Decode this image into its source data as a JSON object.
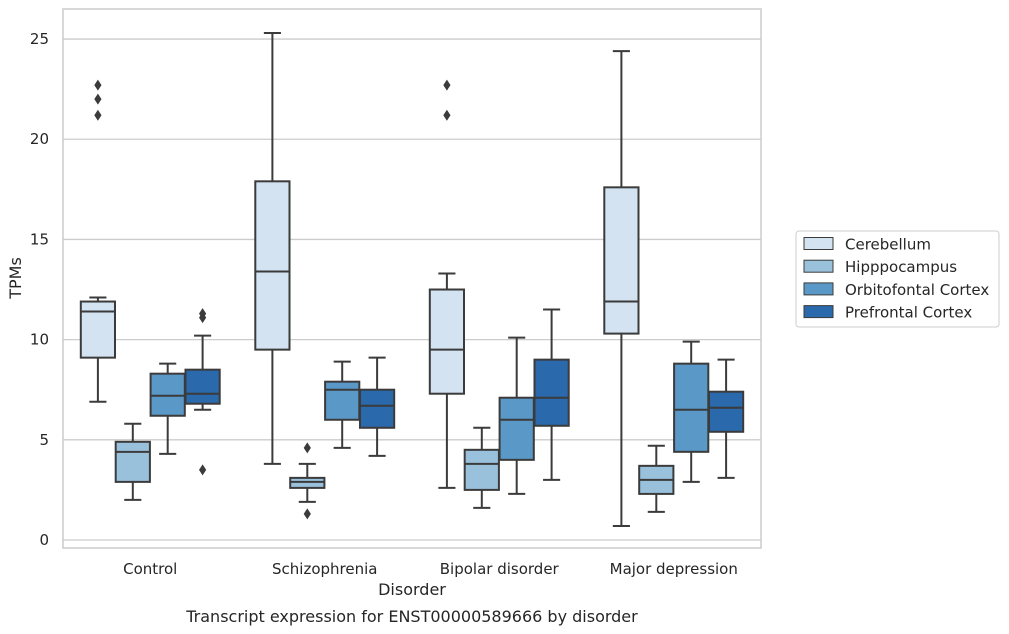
{
  "chart_data": {
    "type": "box",
    "caption": "Transcript expression for ENST00000589666 by disorder",
    "xlabel": "Disorder",
    "ylabel": "TPMs",
    "ylim": [
      -0.4,
      26.5
    ],
    "yticks": [
      0,
      5,
      10,
      15,
      20,
      25
    ],
    "grid": true,
    "legend_position": "right",
    "categories": [
      "Control",
      "Schizophrenia",
      "Bipolar disorder",
      "Major depression"
    ],
    "series": [
      {
        "name": "Cerebellum",
        "color": "#d3e3f2",
        "boxes": [
          {
            "whislo": 6.9,
            "q1": 9.1,
            "med": 11.4,
            "q3": 11.9,
            "whishi": 12.1,
            "fliers": [
              21.2,
              22.0,
              22.7
            ]
          },
          {
            "whislo": 3.8,
            "q1": 9.5,
            "med": 13.4,
            "q3": 17.9,
            "whishi": 25.3,
            "fliers": []
          },
          {
            "whislo": 2.6,
            "q1": 7.3,
            "med": 9.5,
            "q3": 12.5,
            "whishi": 13.3,
            "fliers": [
              21.2,
              22.7
            ]
          },
          {
            "whislo": 0.7,
            "q1": 10.3,
            "med": 11.9,
            "q3": 17.6,
            "whishi": 24.4,
            "fliers": []
          }
        ]
      },
      {
        "name": "Hipppocampus",
        "color": "#9ac1dc",
        "boxes": [
          {
            "whislo": 2.0,
            "q1": 2.9,
            "med": 4.4,
            "q3": 4.9,
            "whishi": 5.8,
            "fliers": []
          },
          {
            "whislo": 1.9,
            "q1": 2.6,
            "med": 2.9,
            "q3": 3.1,
            "whishi": 3.8,
            "fliers": [
              1.3,
              4.6
            ]
          },
          {
            "whislo": 1.6,
            "q1": 2.5,
            "med": 3.8,
            "q3": 4.5,
            "whishi": 5.6,
            "fliers": []
          },
          {
            "whislo": 1.4,
            "q1": 2.3,
            "med": 3.0,
            "q3": 3.7,
            "whishi": 4.7,
            "fliers": []
          }
        ]
      },
      {
        "name": "Orbitofontal Cortex",
        "color": "#5a98c7",
        "boxes": [
          {
            "whislo": 4.3,
            "q1": 6.2,
            "med": 7.2,
            "q3": 8.3,
            "whishi": 8.8,
            "fliers": []
          },
          {
            "whislo": 4.6,
            "q1": 6.0,
            "med": 7.5,
            "q3": 7.9,
            "whishi": 8.9,
            "fliers": []
          },
          {
            "whislo": 2.3,
            "q1": 4.0,
            "med": 6.0,
            "q3": 7.1,
            "whishi": 10.1,
            "fliers": []
          },
          {
            "whislo": 2.9,
            "q1": 4.4,
            "med": 6.5,
            "q3": 8.8,
            "whishi": 9.9,
            "fliers": []
          }
        ]
      },
      {
        "name": "Prefrontal Cortex",
        "color": "#2a69ac",
        "boxes": [
          {
            "whislo": 6.5,
            "q1": 6.8,
            "med": 7.3,
            "q3": 8.5,
            "whishi": 10.2,
            "fliers": [
              3.5,
              11.1,
              11.3
            ]
          },
          {
            "whislo": 4.2,
            "q1": 5.6,
            "med": 6.7,
            "q3": 7.5,
            "whishi": 9.1,
            "fliers": []
          },
          {
            "whislo": 3.0,
            "q1": 5.7,
            "med": 7.1,
            "q3": 9.0,
            "whishi": 11.5,
            "fliers": []
          },
          {
            "whislo": 3.1,
            "q1": 5.4,
            "med": 6.6,
            "q3": 7.4,
            "whishi": 9.0,
            "fliers": []
          }
        ]
      }
    ]
  }
}
